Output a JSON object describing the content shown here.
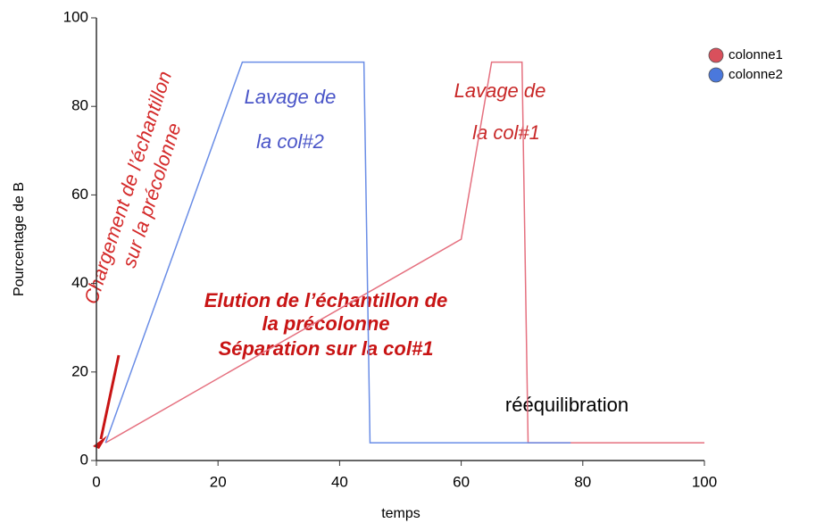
{
  "chart_data": {
    "type": "line",
    "xlabel": "temps",
    "ylabel": "Pourcentage de B",
    "xlim": [
      0,
      100
    ],
    "ylim": [
      0,
      100
    ],
    "xticks": [
      0,
      20,
      40,
      60,
      80,
      100
    ],
    "yticks": [
      0,
      20,
      40,
      60,
      80,
      100
    ],
    "legend": "upper right",
    "series": [
      {
        "name": "colonne1",
        "color": "#e5707f",
        "marker_color": "#d9505c",
        "x": [
          1.5,
          60,
          65,
          70,
          71,
          100
        ],
        "values": [
          4,
          50,
          90,
          90,
          4,
          4
        ]
      },
      {
        "name": "colonne2",
        "color": "#6a8de6",
        "marker_color": "#4a78dc",
        "x": [
          1.5,
          24,
          44,
          45,
          78
        ],
        "values": [
          4,
          90,
          90,
          4,
          4
        ]
      }
    ],
    "annotations": {
      "chargement": [
        "Chargement de l’échantillon",
        "sur la précolonne"
      ],
      "lavage2": [
        "Lavage de",
        "la col#2"
      ],
      "lavage1": [
        "Lavage de",
        "la col#1"
      ],
      "elution": [
        "Elution de l’échantillon de",
        "la précolonne",
        "Séparation sur la col#1"
      ],
      "reequilibration": "rééquilibration"
    }
  }
}
